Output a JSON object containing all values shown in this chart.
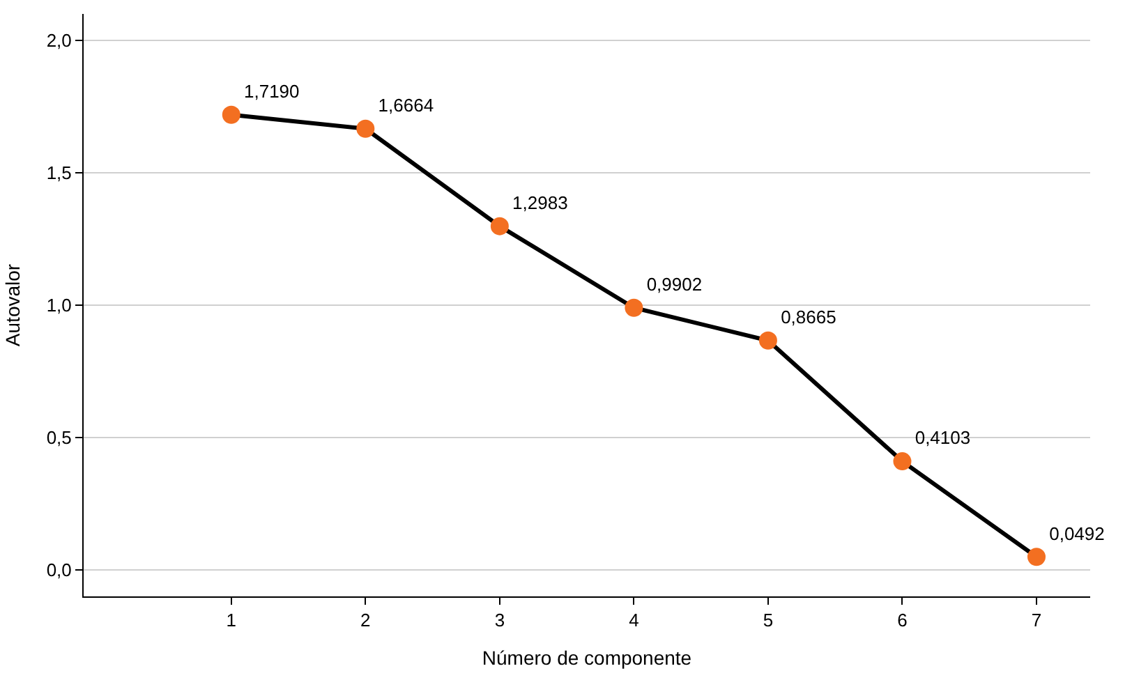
{
  "chart_data": {
    "type": "line",
    "xlabel": "Número de componente",
    "ylabel": "Autovalor",
    "x": [
      1,
      2,
      3,
      4,
      5,
      6,
      7
    ],
    "series": [
      {
        "color": "#000000",
        "colors": [
          "#f36f21",
          "#f36f21",
          "#f36f21",
          "#f36f21",
          "#f36f21",
          "#f36f21",
          "#f36f21"
        ],
        "values": [
          1.719,
          1.6664,
          1.2983,
          0.9902,
          0.8665,
          0.4103,
          0.0492
        ],
        "value_labels": [
          "1,7190",
          "1,6664",
          "1,2983",
          "0,9902",
          "0,8665",
          "0,4103",
          "0,0492"
        ]
      }
    ],
    "xlim": [
      -0.1,
      7.4
    ],
    "xticks": [
      1,
      2,
      3,
      4,
      5,
      6,
      7
    ],
    "ylim": [
      -0.1,
      2.1
    ],
    "yticks": [
      {
        "value": 0,
        "label": "0,0"
      },
      {
        "value": 0.5,
        "label": "0,5"
      },
      {
        "value": 1,
        "label": "1,0"
      },
      {
        "value": 1.5,
        "label": "1,5"
      },
      {
        "value": 2,
        "label": "2,0"
      }
    ],
    "grid": "y",
    "marker": "circle",
    "line_style": "solid",
    "legend": false
  }
}
